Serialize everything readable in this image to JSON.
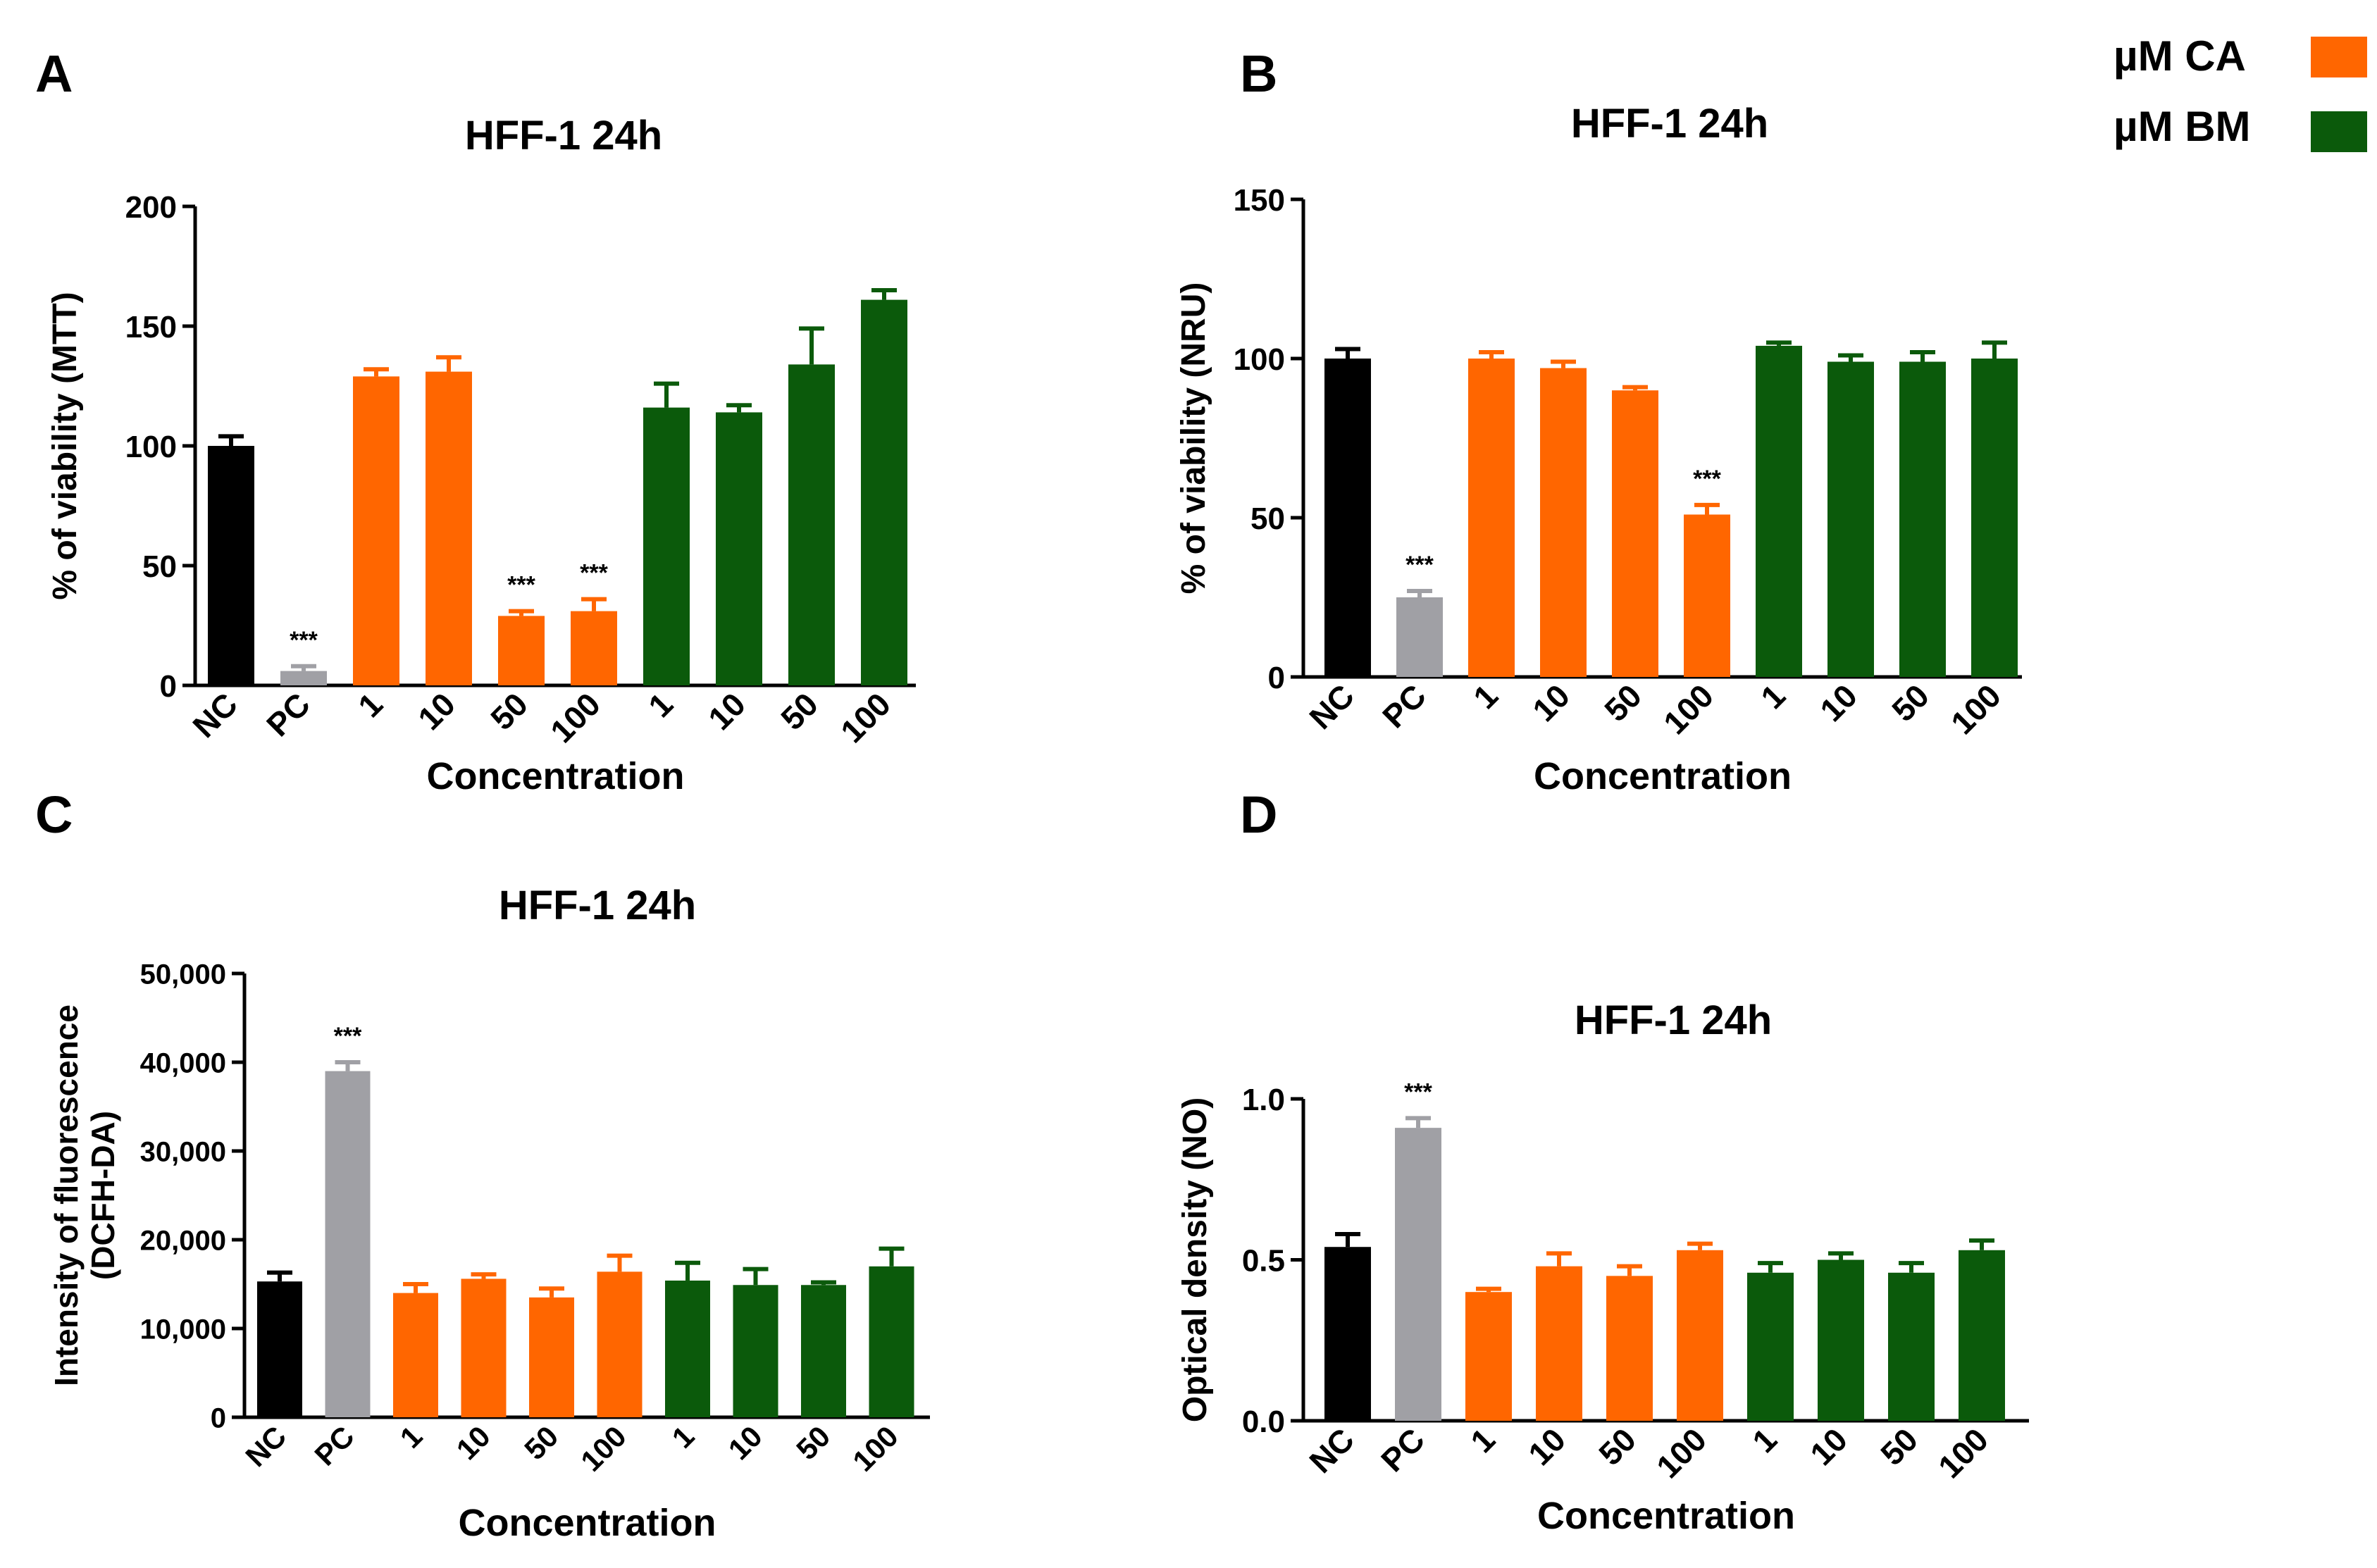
{
  "legend": {
    "position": "top-right",
    "items": [
      {
        "label": "µM CA",
        "color": "#FF6600"
      },
      {
        "label": "µM BM",
        "color": "#0B5A0B"
      }
    ]
  },
  "colors": {
    "nc": "#000000",
    "pc": "#A0A0A5",
    "ca": "#FF6600",
    "bm": "#0B5A0B",
    "axis": "#000000"
  },
  "chart_data": [
    {
      "panel": "A",
      "type": "bar",
      "title": "HFF-1 24h",
      "xlabel": "Concentration",
      "ylabel": "% of viability (MTT)",
      "ylim": [
        0,
        200
      ],
      "yticks": [
        "0",
        "50",
        "100",
        "150",
        "200"
      ],
      "ytick_values": [
        0,
        50,
        100,
        150,
        200
      ],
      "categories": [
        "NC",
        "PC",
        "1",
        "10",
        "50",
        "100",
        "1",
        "10",
        "50",
        "100"
      ],
      "groups": [
        "nc",
        "pc",
        "ca",
        "ca",
        "ca",
        "ca",
        "bm",
        "bm",
        "bm",
        "bm"
      ],
      "values": [
        100,
        6,
        129,
        131,
        29,
        31,
        116,
        114,
        134,
        161
      ],
      "errors": [
        4,
        2,
        3,
        6,
        2,
        5,
        10,
        3,
        15,
        4
      ],
      "annotations": [
        "",
        "***",
        "",
        "",
        "***",
        "***",
        "",
        "",
        "",
        ""
      ]
    },
    {
      "panel": "B",
      "type": "bar",
      "title": "HFF-1 24h",
      "xlabel": "Concentration",
      "ylabel": "% of viability (NRU)",
      "ylim": [
        0,
        150
      ],
      "yticks": [
        "0",
        "50",
        "100",
        "150"
      ],
      "ytick_values": [
        0,
        50,
        100,
        150
      ],
      "categories": [
        "NC",
        "PC",
        "1",
        "10",
        "50",
        "100",
        "1",
        "10",
        "50",
        "100"
      ],
      "groups": [
        "nc",
        "pc",
        "ca",
        "ca",
        "ca",
        "ca",
        "bm",
        "bm",
        "bm",
        "bm"
      ],
      "values": [
        100,
        25,
        100,
        97,
        90,
        51,
        104,
        99,
        99,
        100
      ],
      "errors": [
        3,
        2,
        2,
        2,
        1,
        3,
        1,
        2,
        3,
        5
      ],
      "annotations": [
        "",
        "***",
        "",
        "",
        "",
        "***",
        "",
        "",
        "",
        ""
      ]
    },
    {
      "panel": "C",
      "type": "bar",
      "title": "HFF-1 24h",
      "xlabel": "Concentration",
      "ylabel": "Intensity of fluorescence (DCFH-DA)",
      "ylabel_lines": [
        "Intensity of fluorescence",
        "(DCFH-DA)"
      ],
      "ylim": [
        0,
        50000
      ],
      "yticks": [
        "0",
        "10,000",
        "20,000",
        "30,000",
        "40,000",
        "50,000"
      ],
      "ytick_values": [
        0,
        10000,
        20000,
        30000,
        40000,
        50000
      ],
      "categories": [
        "NC",
        "PC",
        "1",
        "10",
        "50",
        "100",
        "1",
        "10",
        "50",
        "100"
      ],
      "groups": [
        "nc",
        "pc",
        "ca",
        "ca",
        "ca",
        "ca",
        "bm",
        "bm",
        "bm",
        "bm"
      ],
      "values": [
        15300,
        39000,
        14000,
        15600,
        13500,
        16400,
        15400,
        14900,
        14900,
        17000
      ],
      "errors": [
        1000,
        1000,
        1000,
        500,
        1000,
        1800,
        2000,
        1800,
        300,
        2000
      ],
      "annotations": [
        "",
        "***",
        "",
        "",
        "",
        "",
        "",
        "",
        "",
        ""
      ]
    },
    {
      "panel": "D",
      "type": "bar",
      "title": "HFF-1 24h",
      "xlabel": "Concentration",
      "ylabel": "Optical density (NO)",
      "ylim": [
        0,
        1.0
      ],
      "yticks": [
        "0.0",
        "0.5",
        "1.0"
      ],
      "ytick_values": [
        0,
        0.5,
        1.0
      ],
      "categories": [
        "NC",
        "PC",
        "1",
        "10",
        "50",
        "100",
        "1",
        "10",
        "50",
        "100"
      ],
      "groups": [
        "nc",
        "pc",
        "ca",
        "ca",
        "ca",
        "ca",
        "bm",
        "bm",
        "bm",
        "bm"
      ],
      "values": [
        0.54,
        0.91,
        0.4,
        0.48,
        0.45,
        0.53,
        0.46,
        0.5,
        0.46,
        0.53
      ],
      "errors": [
        0.04,
        0.03,
        0.01,
        0.04,
        0.03,
        0.02,
        0.03,
        0.02,
        0.03,
        0.03
      ],
      "annotations": [
        "",
        "***",
        "",
        "",
        "",
        "",
        "",
        "",
        "",
        ""
      ]
    }
  ]
}
